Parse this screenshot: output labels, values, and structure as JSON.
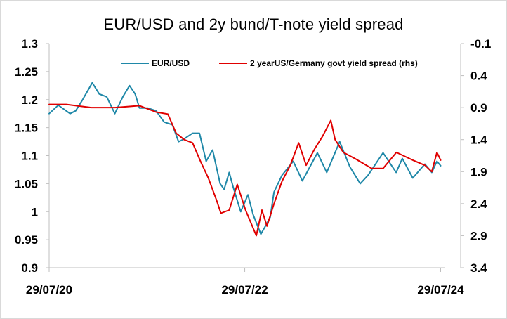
{
  "chart_data": {
    "type": "line",
    "title": "EUR/USD and 2y bund/T-note yield spread",
    "x_ticks": [
      "29/07/20",
      "29/07/22",
      "29/07/24"
    ],
    "x_range": [
      "2020-07-29",
      "2024-08-15"
    ],
    "y_left": {
      "ticks": [
        "1.3",
        "1.25",
        "1.2",
        "1.15",
        "1.1",
        "1.05",
        "1",
        "0.95",
        "0.9"
      ],
      "range": [
        0.9,
        1.3
      ]
    },
    "y_right": {
      "ticks": [
        "-0.1",
        "0.4",
        "0.9",
        "1.4",
        "1.9",
        "2.4",
        "2.9",
        "3.4"
      ],
      "range": [
        -0.1,
        3.4
      ],
      "inverted": true
    },
    "legend_position": "top",
    "grid": false,
    "series": [
      {
        "name": "EUR/USD",
        "axis": "left",
        "color": "#1f88a8",
        "points": [
          [
            "2020-07-29",
            1.175
          ],
          [
            "2020-09-01",
            1.19
          ],
          [
            "2020-10-15",
            1.175
          ],
          [
            "2020-11-05",
            1.18
          ],
          [
            "2020-12-01",
            1.2
          ],
          [
            "2021-01-06",
            1.23
          ],
          [
            "2021-02-01",
            1.21
          ],
          [
            "2021-03-01",
            1.205
          ],
          [
            "2021-03-31",
            1.175
          ],
          [
            "2021-04-30",
            1.205
          ],
          [
            "2021-05-25",
            1.225
          ],
          [
            "2021-06-15",
            1.21
          ],
          [
            "2021-07-01",
            1.185
          ],
          [
            "2021-08-01",
            1.185
          ],
          [
            "2021-09-01",
            1.18
          ],
          [
            "2021-10-01",
            1.16
          ],
          [
            "2021-11-01",
            1.155
          ],
          [
            "2021-11-24",
            1.125
          ],
          [
            "2021-12-15",
            1.13
          ],
          [
            "2022-01-15",
            1.14
          ],
          [
            "2022-02-10",
            1.14
          ],
          [
            "2022-03-07",
            1.09
          ],
          [
            "2022-03-31",
            1.11
          ],
          [
            "2022-04-28",
            1.05
          ],
          [
            "2022-05-13",
            1.04
          ],
          [
            "2022-06-01",
            1.07
          ],
          [
            "2022-06-15",
            1.045
          ],
          [
            "2022-07-14",
            1.0
          ],
          [
            "2022-08-10",
            1.03
          ],
          [
            "2022-08-29",
            0.995
          ],
          [
            "2022-09-27",
            0.96
          ],
          [
            "2022-10-15",
            0.975
          ],
          [
            "2022-11-01",
            0.99
          ],
          [
            "2022-11-15",
            1.035
          ],
          [
            "2022-12-15",
            1.065
          ],
          [
            "2023-01-26",
            1.09
          ],
          [
            "2023-03-01",
            1.055
          ],
          [
            "2023-04-26",
            1.105
          ],
          [
            "2023-05-31",
            1.07
          ],
          [
            "2023-07-18",
            1.125
          ],
          [
            "2023-08-25",
            1.08
          ],
          [
            "2023-10-03",
            1.05
          ],
          [
            "2023-11-01",
            1.065
          ],
          [
            "2023-12-27",
            1.105
          ],
          [
            "2024-02-14",
            1.07
          ],
          [
            "2024-03-08",
            1.095
          ],
          [
            "2024-04-16",
            1.06
          ],
          [
            "2024-05-31",
            1.085
          ],
          [
            "2024-06-26",
            1.07
          ],
          [
            "2024-07-15",
            1.09
          ],
          [
            "2024-07-29",
            1.082
          ]
        ]
      },
      {
        "name": "2 yearUS/Germany govt yield spread (rhs)",
        "axis": "right",
        "color": "#e00000",
        "points": [
          [
            "2020-07-29",
            0.85
          ],
          [
            "2020-10-01",
            0.85
          ],
          [
            "2021-01-01",
            0.9
          ],
          [
            "2021-04-01",
            0.9
          ],
          [
            "2021-07-01",
            0.87
          ],
          [
            "2021-09-01",
            0.97
          ],
          [
            "2021-10-15",
            1.0
          ],
          [
            "2021-11-15",
            1.3
          ],
          [
            "2021-12-15",
            1.4
          ],
          [
            "2022-01-15",
            1.45
          ],
          [
            "2022-02-15",
            1.75
          ],
          [
            "2022-03-15",
            2.0
          ],
          [
            "2022-04-15",
            2.35
          ],
          [
            "2022-05-01",
            2.55
          ],
          [
            "2022-06-01",
            2.5
          ],
          [
            "2022-07-01",
            2.1
          ],
          [
            "2022-08-01",
            2.5
          ],
          [
            "2022-09-10",
            2.9
          ],
          [
            "2022-10-01",
            2.5
          ],
          [
            "2022-10-20",
            2.75
          ],
          [
            "2022-11-15",
            2.4
          ],
          [
            "2022-12-15",
            2.05
          ],
          [
            "2023-01-15",
            1.8
          ],
          [
            "2023-02-15",
            1.45
          ],
          [
            "2023-03-15",
            1.8
          ],
          [
            "2023-04-15",
            1.55
          ],
          [
            "2023-05-15",
            1.35
          ],
          [
            "2023-06-15",
            1.1
          ],
          [
            "2023-07-01",
            1.4
          ],
          [
            "2023-08-01",
            1.6
          ],
          [
            "2023-09-15",
            1.7
          ],
          [
            "2023-11-15",
            1.85
          ],
          [
            "2023-12-27",
            1.85
          ],
          [
            "2024-02-15",
            1.6
          ],
          [
            "2024-04-16",
            1.72
          ],
          [
            "2024-05-31",
            1.8
          ],
          [
            "2024-06-26",
            1.9
          ],
          [
            "2024-07-15",
            1.6
          ],
          [
            "2024-07-29",
            1.72
          ]
        ]
      }
    ]
  }
}
